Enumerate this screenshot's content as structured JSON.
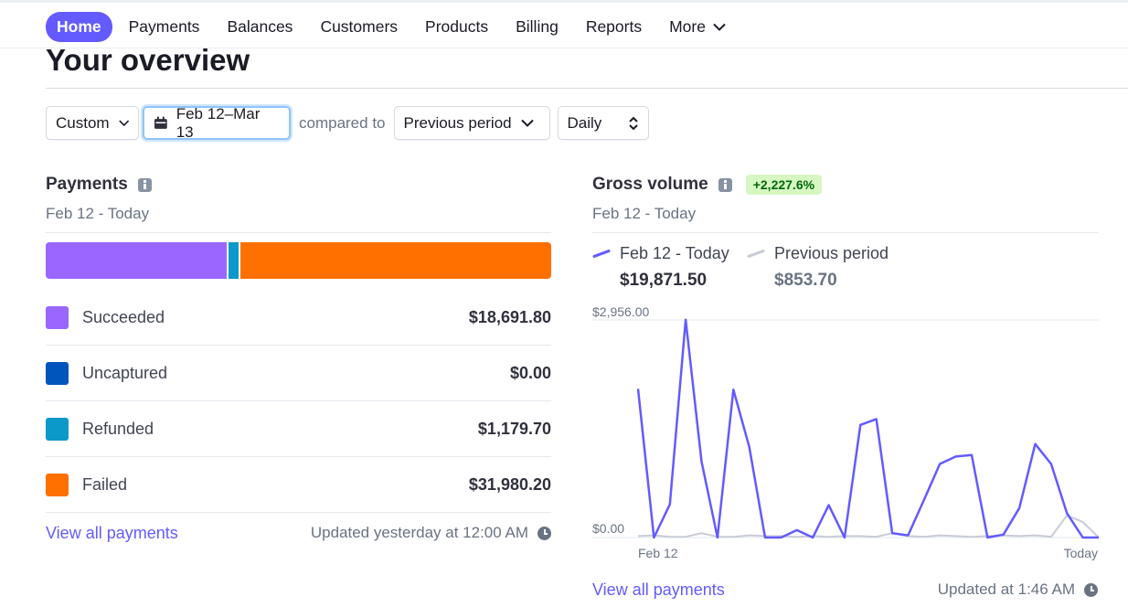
{
  "nav": {
    "items": [
      "Home",
      "Payments",
      "Balances",
      "Customers",
      "Products",
      "Billing",
      "Reports"
    ],
    "active": "Home",
    "more_label": "More"
  },
  "page": {
    "title": "Your overview"
  },
  "filters": {
    "range_mode": "Custom",
    "date_range": "Feb 12–Mar 13",
    "compared_to_label": "compared to",
    "comparison": "Previous period",
    "interval": "Daily"
  },
  "payments": {
    "title": "Payments",
    "subtitle": "Feb 12 - Today",
    "breakdown": [
      {
        "label": "Succeeded",
        "value": "$18,691.80",
        "color": "#9966ff"
      },
      {
        "label": "Uncaptured",
        "value": "$0.00",
        "color": "#0055bc"
      },
      {
        "label": "Refunded",
        "value": "$1,179.70",
        "color": "#0a99c9"
      },
      {
        "label": "Failed",
        "value": "$31,980.20",
        "color": "#ff7000"
      }
    ],
    "bar_fractions": [
      0.358,
      0.0,
      0.023,
      0.619
    ],
    "link": "View all payments",
    "updated": "Updated yesterday at 12:00 AM"
  },
  "gross_volume": {
    "title": "Gross volume",
    "change_badge": "+2,227.6%",
    "subtitle": "Feb 12 - Today",
    "current": {
      "label": "Feb 12 - Today",
      "total": "$19,871.50",
      "color": "#635bff"
    },
    "previous": {
      "label": "Previous period",
      "total": "$853.70",
      "color": "#c9ccd6"
    },
    "link": "View all payments",
    "updated": "Updated at 1:46 AM"
  },
  "chart_data": {
    "type": "line",
    "title": "Gross volume",
    "y_max_label": "$2,956.00",
    "y_min_label": "$0.00",
    "x_start_label": "Feb 12",
    "x_end_label": "Today",
    "ylim": [
      0,
      2956
    ],
    "series": [
      {
        "name": "Feb 12 - Today",
        "values": [
          2020,
          0,
          450,
          2960,
          1030,
          0,
          2010,
          1230,
          0,
          0,
          100,
          0,
          440,
          0,
          1530,
          1610,
          60,
          30,
          510,
          1000,
          1100,
          1120,
          0,
          40,
          400,
          1270,
          1000,
          330,
          0,
          0
        ]
      },
      {
        "name": "Previous period",
        "values": [
          20,
          30,
          10,
          10,
          60,
          10,
          10,
          30,
          20,
          20,
          10,
          20,
          10,
          20,
          20,
          10,
          60,
          20,
          10,
          30,
          20,
          10,
          20,
          30,
          20,
          30,
          10,
          300,
          210,
          0
        ]
      }
    ]
  }
}
